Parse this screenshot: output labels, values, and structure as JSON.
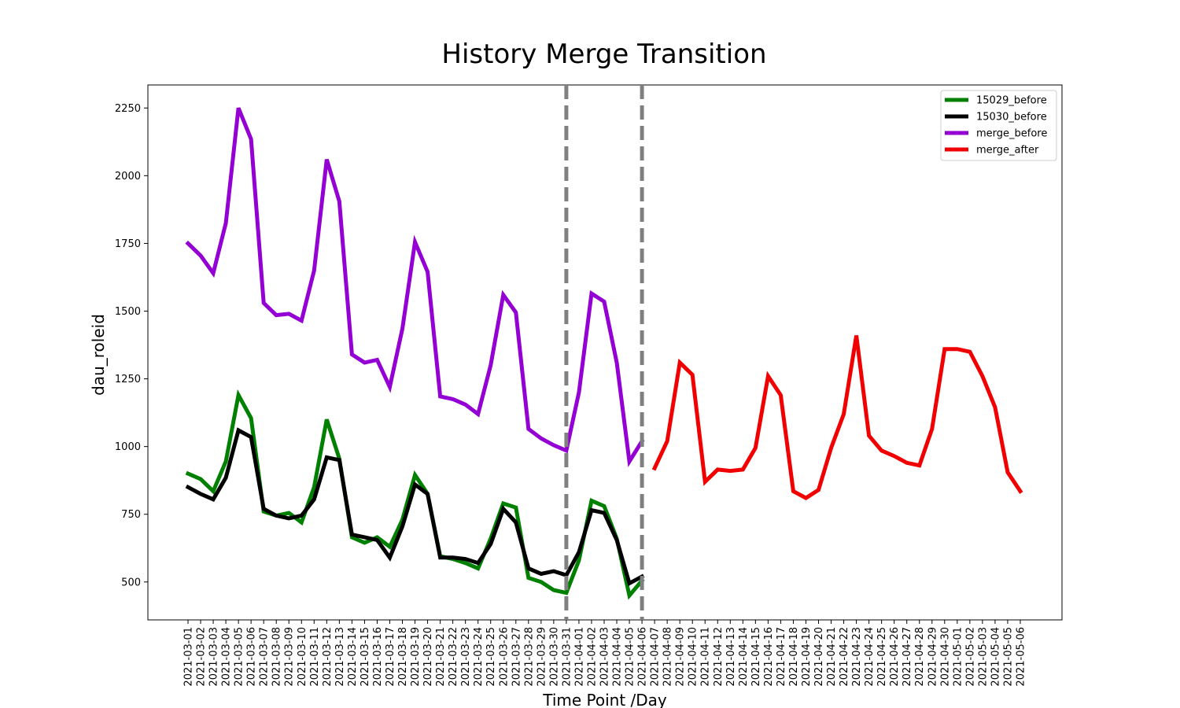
{
  "chart_data": {
    "type": "line",
    "title": "History Merge Transition",
    "xlabel": "Time Point /Day",
    "ylabel": "dau_roleid",
    "ylim": [
      360,
      2335
    ],
    "yticks": [
      500,
      750,
      1000,
      1250,
      1500,
      1750,
      2000,
      2250
    ],
    "grid": false,
    "legend_position": "top-right",
    "categories": [
      "2021-03-01",
      "2021-03-02",
      "2021-03-03",
      "2021-03-04",
      "2021-03-05",
      "2021-03-06",
      "2021-03-07",
      "2021-03-08",
      "2021-03-09",
      "2021-03-10",
      "2021-03-11",
      "2021-03-12",
      "2021-03-13",
      "2021-03-14",
      "2021-03-15",
      "2021-03-16",
      "2021-03-17",
      "2021-03-18",
      "2021-03-19",
      "2021-03-20",
      "2021-03-21",
      "2021-03-22",
      "2021-03-23",
      "2021-03-24",
      "2021-03-25",
      "2021-03-26",
      "2021-03-27",
      "2021-03-28",
      "2021-03-29",
      "2021-03-30",
      "2021-03-31",
      "2021-04-01",
      "2021-04-02",
      "2021-04-03",
      "2021-04-04",
      "2021-04-05",
      "2021-04-06",
      "2021-04-07",
      "2021-04-08",
      "2021-04-09",
      "2021-04-10",
      "2021-04-11",
      "2021-04-12",
      "2021-04-13",
      "2021-04-14",
      "2021-04-15",
      "2021-04-16",
      "2021-04-17",
      "2021-04-18",
      "2021-04-19",
      "2021-04-20",
      "2021-04-21",
      "2021-04-22",
      "2021-04-23",
      "2021-04-24",
      "2021-04-25",
      "2021-04-26",
      "2021-04-27",
      "2021-04-28",
      "2021-04-29",
      "2021-04-30",
      "2021-05-01",
      "2021-05-02",
      "2021-05-03",
      "2021-05-04",
      "2021-05-05",
      "2021-05-06"
    ],
    "vlines": [
      {
        "x": "2021-03-31",
        "color": "#808080",
        "style": "dashed"
      },
      {
        "x": "2021-04-06",
        "color": "#808080",
        "style": "dashed"
      }
    ],
    "series": [
      {
        "name": "15029_before",
        "color": "#008000",
        "x": [
          "2021-03-01",
          "2021-03-02",
          "2021-03-03",
          "2021-03-04",
          "2021-03-05",
          "2021-03-06",
          "2021-03-07",
          "2021-03-08",
          "2021-03-09",
          "2021-03-10",
          "2021-03-11",
          "2021-03-12",
          "2021-03-13",
          "2021-03-14",
          "2021-03-15",
          "2021-03-16",
          "2021-03-17",
          "2021-03-18",
          "2021-03-19",
          "2021-03-20",
          "2021-03-21",
          "2021-03-22",
          "2021-03-23",
          "2021-03-24",
          "2021-03-25",
          "2021-03-26",
          "2021-03-27",
          "2021-03-28",
          "2021-03-29",
          "2021-03-30",
          "2021-03-31",
          "2021-04-01",
          "2021-04-02",
          "2021-04-03",
          "2021-04-04",
          "2021-04-05",
          "2021-04-06"
        ],
        "values": [
          900,
          880,
          835,
          945,
          1190,
          1105,
          760,
          745,
          755,
          720,
          850,
          1100,
          955,
          665,
          645,
          665,
          630,
          730,
          895,
          825,
          595,
          585,
          570,
          550,
          660,
          790,
          775,
          515,
          500,
          470,
          460,
          580,
          800,
          780,
          660,
          450,
          505
        ]
      },
      {
        "name": "15030_before",
        "color": "#000000",
        "x": [
          "2021-03-01",
          "2021-03-02",
          "2021-03-03",
          "2021-03-04",
          "2021-03-05",
          "2021-03-06",
          "2021-03-07",
          "2021-03-08",
          "2021-03-09",
          "2021-03-10",
          "2021-03-11",
          "2021-03-12",
          "2021-03-13",
          "2021-03-14",
          "2021-03-15",
          "2021-03-16",
          "2021-03-17",
          "2021-03-18",
          "2021-03-19",
          "2021-03-20",
          "2021-03-21",
          "2021-03-22",
          "2021-03-23",
          "2021-03-24",
          "2021-03-25",
          "2021-03-26",
          "2021-03-27",
          "2021-03-28",
          "2021-03-29",
          "2021-03-30",
          "2021-03-31",
          "2021-04-01",
          "2021-04-02",
          "2021-04-03",
          "2021-04-04",
          "2021-04-05",
          "2021-04-06"
        ],
        "values": [
          850,
          825,
          805,
          885,
          1060,
          1035,
          770,
          745,
          735,
          745,
          805,
          960,
          950,
          675,
          665,
          655,
          590,
          705,
          860,
          825,
          590,
          590,
          585,
          570,
          640,
          770,
          720,
          550,
          530,
          540,
          525,
          610,
          765,
          755,
          655,
          495,
          520
        ]
      },
      {
        "name": "merge_before",
        "color": "#9400D3",
        "x": [
          "2021-03-01",
          "2021-03-02",
          "2021-03-03",
          "2021-03-04",
          "2021-03-05",
          "2021-03-06",
          "2021-03-07",
          "2021-03-08",
          "2021-03-09",
          "2021-03-10",
          "2021-03-11",
          "2021-03-12",
          "2021-03-13",
          "2021-03-14",
          "2021-03-15",
          "2021-03-16",
          "2021-03-17",
          "2021-03-18",
          "2021-03-19",
          "2021-03-20",
          "2021-03-21",
          "2021-03-22",
          "2021-03-23",
          "2021-03-24",
          "2021-03-25",
          "2021-03-26",
          "2021-03-27",
          "2021-03-28",
          "2021-03-29",
          "2021-03-30",
          "2021-03-31",
          "2021-04-01",
          "2021-04-02",
          "2021-04-03",
          "2021-04-04",
          "2021-04-05",
          "2021-04-06"
        ],
        "values": [
          1750,
          1705,
          1640,
          1825,
          2250,
          2135,
          1530,
          1485,
          1490,
          1465,
          1650,
          2060,
          1905,
          1340,
          1310,
          1320,
          1220,
          1435,
          1755,
          1645,
          1185,
          1175,
          1155,
          1120,
          1300,
          1560,
          1495,
          1065,
          1030,
          1005,
          985,
          1200,
          1565,
          1535,
          1310,
          945,
          1020
        ]
      },
      {
        "name": "merge_after",
        "color": "#F00000",
        "x": [
          "2021-04-07",
          "2021-04-08",
          "2021-04-09",
          "2021-04-10",
          "2021-04-11",
          "2021-04-12",
          "2021-04-13",
          "2021-04-14",
          "2021-04-15",
          "2021-04-16",
          "2021-04-17",
          "2021-04-18",
          "2021-04-19",
          "2021-04-20",
          "2021-04-21",
          "2021-04-22",
          "2021-04-23",
          "2021-04-24",
          "2021-04-25",
          "2021-04-26",
          "2021-04-27",
          "2021-04-28",
          "2021-04-29",
          "2021-04-30",
          "2021-05-01",
          "2021-05-02",
          "2021-05-03",
          "2021-05-04",
          "2021-05-05",
          "2021-05-06"
        ],
        "values": [
          920,
          1020,
          1310,
          1265,
          870,
          915,
          910,
          915,
          995,
          1260,
          1190,
          835,
          810,
          840,
          995,
          1120,
          1410,
          1040,
          985,
          965,
          940,
          930,
          1065,
          1360,
          1360,
          1350,
          1260,
          1145,
          905,
          835
        ]
      }
    ]
  }
}
